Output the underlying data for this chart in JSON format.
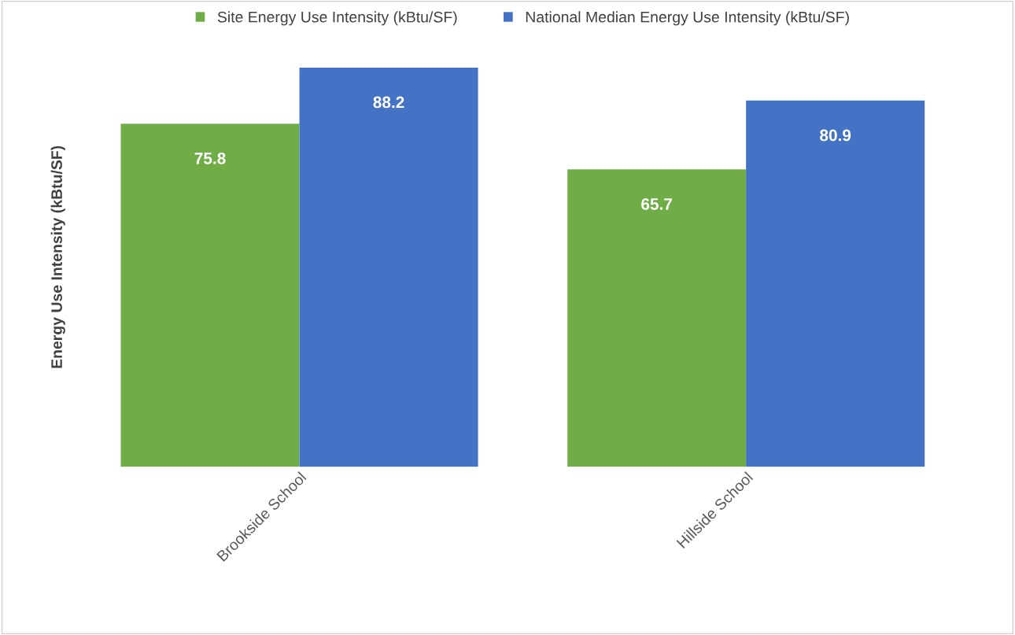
{
  "chart_data": {
    "type": "bar",
    "ylabel": "Energy Use Intensity (kBtu/SF)",
    "categories": [
      "Brookside School",
      "Hillside School"
    ],
    "series": [
      {
        "name": "Site Energy Use Intensity (kBtu/SF)",
        "color": "#70ad47",
        "values": [
          75.8,
          65.7
        ]
      },
      {
        "name": "National Median Energy Use Intensity (kBtu/SF)",
        "color": "#4472c4",
        "values": [
          88.2,
          80.9
        ]
      }
    ],
    "data_labels": true,
    "legend": "top",
    "grid": false,
    "tick_labels": "x"
  }
}
